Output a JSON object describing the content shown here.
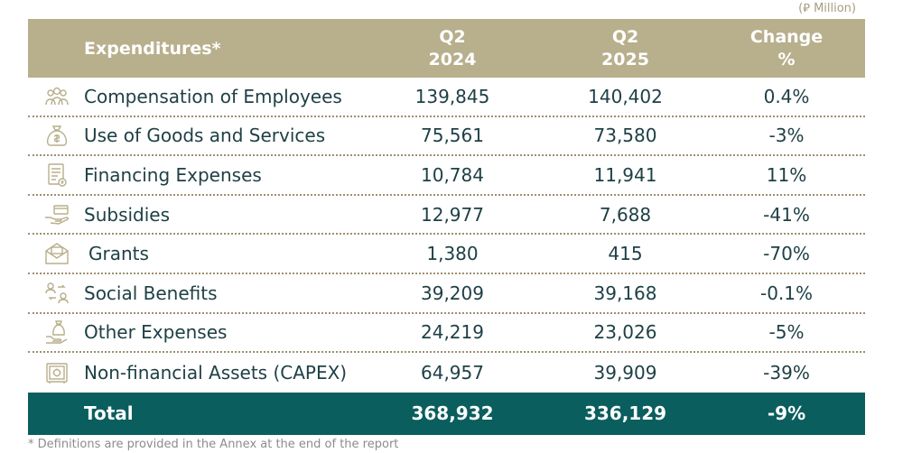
{
  "unit_note": "(⃁ Million)",
  "header": {
    "label": "Expenditures*",
    "col1_line1": "Q2",
    "col1_line2": "2024",
    "col2_line1": "Q2",
    "col2_line2": "2025",
    "col3_line1": "Change",
    "col3_line2": "%"
  },
  "rows": [
    {
      "label": "Compensation of Employees",
      "q2_2024": "139,845",
      "q2_2025": "140,402",
      "change": "0.4%",
      "icon": "employees-icon"
    },
    {
      "label": "Use of Goods and Services",
      "q2_2024": "75,561",
      "q2_2025": "73,580",
      "change": "-3%",
      "icon": "money-bag-icon"
    },
    {
      "label": "Financing Expenses",
      "q2_2024": "10,784",
      "q2_2025": "11,941",
      "change": "11%",
      "icon": "invoice-icon"
    },
    {
      "label": "Subsidies",
      "q2_2024": "12,977",
      "q2_2025": "7,688",
      "change": "-41%",
      "icon": "hand-card-icon"
    },
    {
      "label": "Grants",
      "q2_2024": "1,380",
      "q2_2025": "415",
      "change": "-70%",
      "icon": "envelope-icon"
    },
    {
      "label": "Social Benefits",
      "q2_2024": "39,209",
      "q2_2025": "39,168",
      "change": "-0.1%",
      "icon": "people-exchange-icon"
    },
    {
      "label": "Other Expenses",
      "q2_2024": "24,219",
      "q2_2025": "23,026",
      "change": "-5%",
      "icon": "hand-bag-icon"
    },
    {
      "label": "Non-financial Assets (CAPEX)",
      "q2_2024": "64,957",
      "q2_2025": "39,909",
      "change": "-39%",
      "icon": "safe-icon"
    }
  ],
  "total": {
    "label": "Total",
    "q2_2024": "368,932",
    "q2_2025": "336,129",
    "change": "-9%"
  },
  "footnote": "* Definitions are provided in the Annex at the end of the report",
  "colors": {
    "header_bg": "#b8af8c",
    "total_bg": "#0b5e5e",
    "text": "#1e4046",
    "divider": "#9c9070"
  }
}
